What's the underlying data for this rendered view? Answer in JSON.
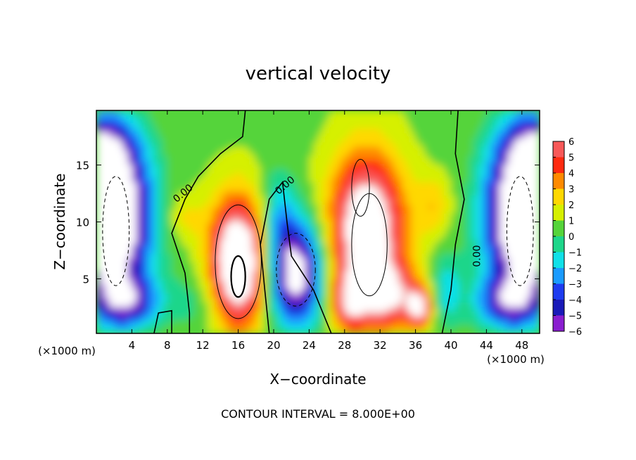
{
  "chart_data": {
    "type": "heatmap",
    "title": "vertical velocity",
    "xlabel": "X−coordinate",
    "ylabel": "Z−coordinate",
    "x_unit": "(×1000 m)",
    "xlim": [
      0,
      50
    ],
    "ylim": [
      0.2,
      19.8
    ],
    "x_ticks": [
      4,
      8,
      12,
      16,
      20,
      24,
      28,
      32,
      36,
      40,
      44,
      48
    ],
    "y_ticks": [
      5,
      10,
      15
    ],
    "colorbar": {
      "range": [
        -6,
        6
      ],
      "ticks": [
        6,
        5,
        4,
        3,
        2,
        1,
        0,
        -1,
        -2,
        -3,
        -4,
        -5,
        -6
      ],
      "tick_labels": [
        "6",
        "5",
        "4",
        "3",
        "2",
        "1",
        "0",
        "−1",
        "−2",
        "−3",
        "−4",
        "−5",
        "−6"
      ]
    },
    "features": [
      {
        "kind": "updraft",
        "x": 16.0,
        "z": 6.0,
        "strength": 9
      },
      {
        "kind": "downdraft",
        "x": 22.5,
        "z": 5.5,
        "strength": 8
      },
      {
        "kind": "updraft",
        "x": 30.0,
        "z": 9.0,
        "strength": 8
      },
      {
        "kind": "updraft",
        "x": 31.5,
        "z": 4.0,
        "strength": 5
      },
      {
        "kind": "downdraft",
        "x": 2.0,
        "z": 9.0,
        "strength": 10
      },
      {
        "kind": "downdraft",
        "x": 48.0,
        "z": 9.0,
        "strength": 10
      }
    ],
    "contour_labels": [
      "0.00",
      "0.00",
      "0.00"
    ],
    "grid": false,
    "legend": "colorbar-right"
  },
  "footer": "CONTOUR INTERVAL = 8.000E+00"
}
